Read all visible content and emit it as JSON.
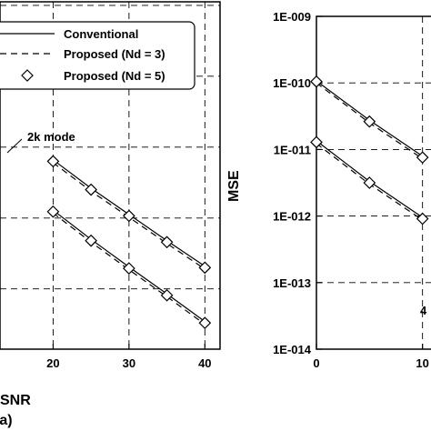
{
  "chart_data": [
    {
      "type": "line",
      "panel": "left",
      "xlabel": "SNR",
      "sublabel": "(a)",
      "ylabel": "",
      "x_ticks": [
        "20",
        "30",
        "40"
      ],
      "xlim": [
        13,
        42
      ],
      "ylim": [
        -13.85,
        -8.95
      ],
      "log_y": true,
      "grid": "dashed",
      "legend": {
        "placement": "top",
        "entries": [
          {
            "label": "Conventional",
            "style": "solid",
            "marker": "none"
          },
          {
            "label": "Proposed (Nd = 3)",
            "style": "dashed",
            "marker": "none"
          },
          {
            "label": "Proposed (Nd = 5)",
            "style": "none",
            "marker": "diamond"
          }
        ]
      },
      "annotation": "2k mode",
      "series": [
        {
          "x": [
            20,
            25,
            30,
            35,
            40
          ],
          "conventional": [
            -11.18,
            -11.58,
            -11.95,
            -12.32,
            -12.68
          ],
          "nd3": [
            -11.22,
            -11.62,
            -11.99,
            -12.36,
            -12.72
          ],
          "nd5": [
            -11.2,
            -11.6,
            -11.97,
            -12.34,
            -12.7
          ]
        },
        {
          "x": [
            20,
            25,
            30,
            35,
            40
          ],
          "conventional": [
            -11.89,
            -12.3,
            -12.69,
            -13.07,
            -13.46
          ],
          "nd3": [
            -11.93,
            -12.34,
            -12.73,
            -13.11,
            -13.5
          ],
          "nd5": [
            -11.91,
            -12.32,
            -12.71,
            -13.09,
            -13.48
          ]
        }
      ]
    },
    {
      "type": "line",
      "panel": "right",
      "xlabel": "",
      "ylabel": "MSE",
      "y_ticks": [
        "1E-009",
        "1E-010",
        "1E-011",
        "1E-012",
        "1E-013",
        "1E-014"
      ],
      "x_ticks": [
        "0",
        "10"
      ],
      "xlim": [
        0,
        12
      ],
      "ylim": [
        -14,
        -9
      ],
      "log_y": true,
      "grid": "dashed",
      "annotation": "4",
      "series": [
        {
          "x": [
            0,
            5,
            10
          ],
          "conventional": [
            -9.97,
            -10.56,
            -11.1
          ],
          "nd3": [
            -10.0,
            -10.6,
            -11.14
          ],
          "nd5": [
            -9.98,
            -10.58,
            -11.12
          ]
        },
        {
          "x": [
            0,
            5,
            10
          ],
          "conventional": [
            -10.87,
            -11.48,
            -12.02
          ],
          "nd3": [
            -10.91,
            -11.52,
            -12.06
          ],
          "nd5": [
            -10.89,
            -11.5,
            -12.04
          ]
        }
      ]
    }
  ]
}
